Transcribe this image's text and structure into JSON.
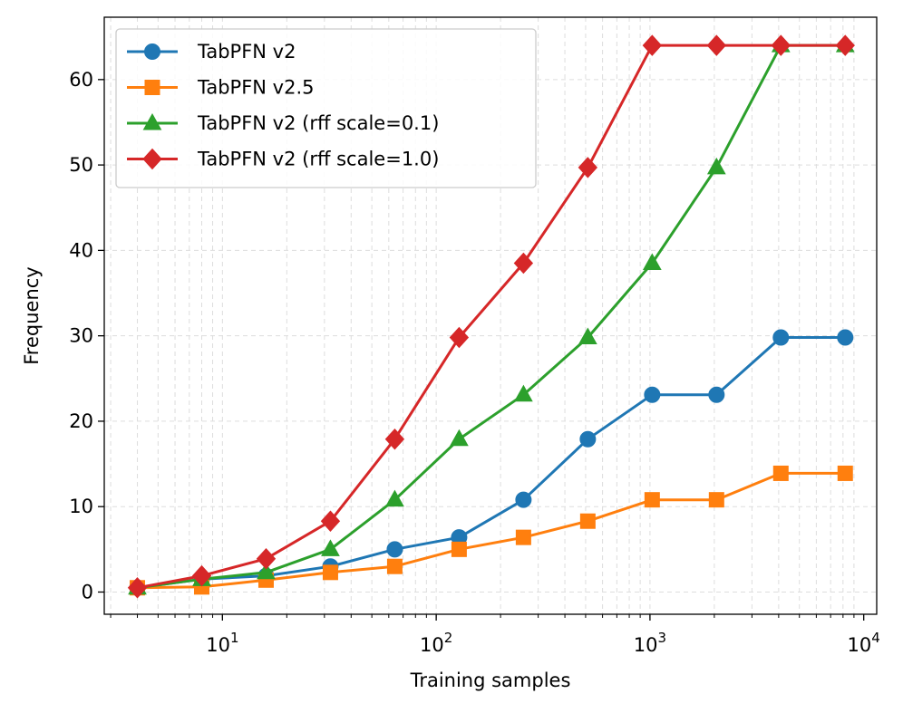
{
  "chart_data": {
    "type": "line",
    "xscale": "log",
    "xlabel": "Training samples",
    "ylabel": "Frequency",
    "xlim": [
      2.8,
      11500
    ],
    "ylim": [
      -2.6,
      67.3
    ],
    "x_ticks": [
      10,
      100,
      1000,
      10000
    ],
    "x_tick_labels": [
      {
        "base": "10",
        "exp": "1"
      },
      {
        "base": "10",
        "exp": "2"
      },
      {
        "base": "10",
        "exp": "3"
      },
      {
        "base": "10",
        "exp": "4"
      }
    ],
    "y_ticks": [
      0,
      10,
      20,
      30,
      40,
      50,
      60
    ],
    "y_tick_labels": [
      "0",
      "10",
      "20",
      "30",
      "40",
      "50",
      "60"
    ],
    "grid": true,
    "legend_position": "top-left",
    "x": [
      4,
      8,
      16,
      32,
      64,
      128,
      256,
      512,
      1024,
      2048,
      4096,
      8192
    ],
    "series": [
      {
        "name": "TabPFN v2",
        "color": "#1f77b4",
        "marker": "circle",
        "values": [
          0.5,
          1.5,
          1.9,
          3.0,
          5.0,
          6.4,
          10.8,
          17.9,
          23.1,
          23.1,
          29.8,
          29.8
        ]
      },
      {
        "name": "TabPFN v2.5",
        "color": "#ff7f0e",
        "marker": "square",
        "values": [
          0.5,
          0.6,
          1.4,
          2.3,
          3.0,
          5.0,
          6.4,
          8.3,
          10.8,
          10.8,
          13.9,
          13.9
        ]
      },
      {
        "name": "TabPFN v2 (rff scale=0.1)",
        "color": "#2ca02c",
        "marker": "triangle",
        "values": [
          0.5,
          1.5,
          2.3,
          5.0,
          10.8,
          17.9,
          23.1,
          29.8,
          38.5,
          49.7,
          64.0,
          64.0
        ]
      },
      {
        "name": "TabPFN v2 (rff scale=1.0)",
        "color": "#d62728",
        "marker": "diamond",
        "values": [
          0.5,
          1.9,
          3.9,
          8.3,
          17.9,
          29.8,
          38.5,
          49.7,
          64.0,
          64.0,
          64.0,
          64.0
        ]
      }
    ]
  }
}
